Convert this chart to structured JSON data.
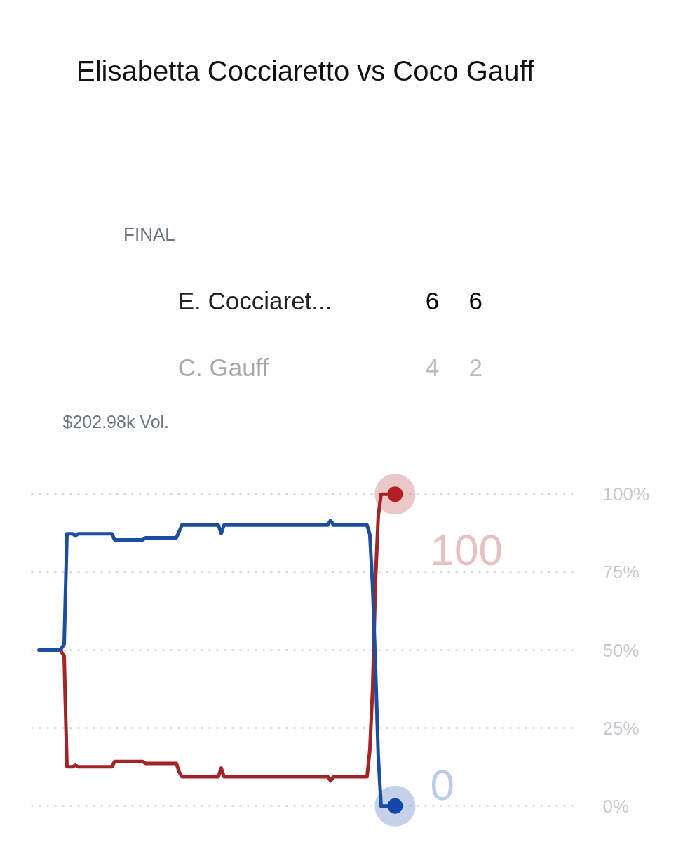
{
  "chart_data": {
    "type": "line",
    "title": "Elisabetta Cocciaretto vs Coco Gauff",
    "annotations": [
      "FINAL",
      "E. Cocciaret...",
      "6",
      "6",
      "C. Gauff",
      "4",
      "2",
      "$202.98k Vol."
    ],
    "categories": [
      null,
      null,
      null,
      null,
      null,
      null,
      null,
      null,
      null,
      null,
      null,
      null,
      null,
      null,
      null,
      null,
      null,
      null,
      null,
      null,
      null,
      null,
      null,
      null,
      null,
      null,
      null,
      null,
      null,
      null,
      null,
      null,
      null,
      null,
      null,
      null,
      null,
      null,
      null,
      null,
      null,
      null,
      null,
      null,
      null,
      null,
      null,
      null,
      null,
      null,
      null,
      null,
      null,
      null,
      null,
      null,
      null,
      null,
      null,
      null,
      null,
      null,
      null,
      null,
      null,
      null,
      null,
      null,
      null,
      null,
      null,
      null,
      null,
      null,
      null,
      null,
      null,
      null,
      null,
      null,
      null,
      null,
      null,
      null,
      null,
      null,
      null,
      null,
      null,
      null,
      null,
      null,
      null,
      null,
      null,
      null,
      null,
      null,
      null,
      null,
      null,
      null,
      null,
      null,
      null,
      null,
      null,
      null,
      null,
      null,
      null,
      null,
      null,
      null,
      null,
      null,
      null,
      null,
      null,
      null,
      null,
      null,
      null,
      null,
      null,
      null,
      null,
      null
    ],
    "series": [
      {
        "color": "#a02428",
        "values": [
          null,
          null,
          null,
          null,
          null,
          null,
          null,
          null,
          49.5,
          48,
          12.6,
          12.6,
          12.6,
          13.1,
          12.6,
          12.6,
          12.6,
          12.6,
          12.6,
          12.6,
          12.6,
          12.6,
          12.6,
          12.6,
          12.6,
          12.6,
          12.6,
          14.3,
          14.3,
          14.3,
          14.3,
          14.3,
          14.3,
          14.3,
          14.3,
          14.3,
          14.3,
          14.3,
          13.7,
          13.7,
          13.7,
          13.7,
          13.7,
          13.7,
          13.7,
          13.7,
          13.7,
          13.7,
          13.7,
          13.7,
          11,
          9.4,
          9.4,
          9.4,
          9.4,
          9.4,
          9.4,
          9.4,
          9.4,
          9.4,
          9.4,
          9.4,
          9.4,
          9.4,
          9.4,
          12.2,
          9.4,
          9.4,
          9.4,
          9.4,
          9.4,
          9.4,
          9.4,
          9.4,
          9.4,
          9.4,
          9.4,
          9.4,
          9.4,
          9.4,
          9.4,
          9.4,
          9.4,
          9.4,
          9.4,
          9.4,
          9.4,
          9.4,
          9.4,
          9.4,
          9.4,
          9.4,
          9.4,
          9.4,
          9.4,
          9.4,
          9.4,
          9.4,
          9.4,
          9.4,
          9.4,
          9.4,
          9.4,
          9.4,
          8.1,
          9.4,
          9.4,
          9.4,
          9.4,
          9.4,
          9.4,
          9.4,
          9.4,
          9.4,
          9.4,
          9.4,
          9.4,
          9.4,
          18,
          38,
          72,
          93,
          100,
          100,
          100,
          100,
          100,
          100
        ]
      },
      {
        "color": "#1d4e9e",
        "values": [
          50,
          50,
          50,
          50,
          50,
          50,
          50,
          50,
          50.5,
          52,
          87.3,
          87.3,
          87.3,
          86.6,
          87.3,
          87.3,
          87.3,
          87.3,
          87.3,
          87.3,
          87.3,
          87.3,
          87.3,
          87.3,
          87.3,
          87.3,
          87.3,
          85.3,
          85.3,
          85.3,
          85.3,
          85.3,
          85.3,
          85.3,
          85.3,
          85.3,
          85.3,
          85.3,
          86,
          86,
          86,
          86,
          86,
          86,
          86,
          86,
          86,
          86,
          86,
          86,
          88,
          90.1,
          90.1,
          90.1,
          90.1,
          90.1,
          90.1,
          90.1,
          90.1,
          90.1,
          90.1,
          90.1,
          90.1,
          90.1,
          90.1,
          87.4,
          90.1,
          90.1,
          90.1,
          90.1,
          90.1,
          90.1,
          90.1,
          90.1,
          90.1,
          90.1,
          90.1,
          90.1,
          90.1,
          90.1,
          90.1,
          90.1,
          90.1,
          90.1,
          90.1,
          90.1,
          90.1,
          90.1,
          90.1,
          90.1,
          90.1,
          90.1,
          90.1,
          90.1,
          90.1,
          90.1,
          90.1,
          90.1,
          90.1,
          90.1,
          90.1,
          90.1,
          90.1,
          90.1,
          91.6,
          90.1,
          90.1,
          90.1,
          90.1,
          90.1,
          90.1,
          90.1,
          90.1,
          90.1,
          90.1,
          90.1,
          90.1,
          90.1,
          87,
          70,
          45,
          16,
          0,
          0,
          0,
          0,
          0,
          0
        ]
      },
      {
        "type": "scatter",
        "marker": "circle",
        "color": "#1248a8",
        "values": [
          null,
          null,
          null,
          null,
          null,
          null,
          null,
          null,
          null,
          null,
          null,
          null,
          null,
          null,
          null,
          null,
          null,
          null,
          null,
          null,
          null,
          null,
          null,
          null,
          null,
          null,
          null,
          null,
          null,
          null,
          null,
          null,
          null,
          null,
          null,
          null,
          null,
          null,
          null,
          null,
          null,
          null,
          null,
          null,
          null,
          null,
          null,
          null,
          null,
          null,
          null,
          null,
          null,
          null,
          null,
          null,
          null,
          null,
          null,
          null,
          null,
          null,
          null,
          null,
          null,
          null,
          null,
          null,
          null,
          null,
          null,
          null,
          null,
          null,
          null,
          null,
          null,
          null,
          null,
          null,
          null,
          null,
          null,
          null,
          null,
          null,
          null,
          null,
          null,
          null,
          null,
          null,
          null,
          null,
          null,
          null,
          null,
          null,
          null,
          null,
          null,
          null,
          null,
          null,
          null,
          null,
          null,
          null,
          null,
          null,
          null,
          null,
          null,
          null,
          null,
          null,
          null,
          null,
          null,
          null,
          null,
          null,
          null,
          null,
          null,
          null,
          null,
          0
        ],
        "value_labels": [
          null,
          null,
          null,
          null,
          null,
          null,
          null,
          null,
          null,
          null,
          null,
          null,
          null,
          null,
          null,
          null,
          null,
          null,
          null,
          null,
          null,
          null,
          null,
          null,
          null,
          null,
          null,
          null,
          null,
          null,
          null,
          null,
          null,
          null,
          null,
          null,
          null,
          null,
          null,
          null,
          null,
          null,
          null,
          null,
          null,
          null,
          null,
          null,
          null,
          null,
          null,
          null,
          null,
          null,
          null,
          null,
          null,
          null,
          null,
          null,
          null,
          null,
          null,
          null,
          null,
          null,
          null,
          null,
          null,
          null,
          null,
          null,
          null,
          null,
          null,
          null,
          null,
          null,
          null,
          null,
          null,
          null,
          null,
          null,
          null,
          null,
          null,
          null,
          null,
          null,
          null,
          null,
          null,
          null,
          null,
          null,
          null,
          null,
          null,
          null,
          null,
          null,
          null,
          null,
          null,
          null,
          null,
          null,
          null,
          null,
          null,
          null,
          null,
          null,
          null,
          null,
          null,
          null,
          null,
          null,
          null,
          null,
          null,
          null,
          null,
          null,
          null,
          "0"
        ]
      },
      {
        "type": "scatter",
        "marker": "circle",
        "color": "#b21f24",
        "values": [
          null,
          null,
          null,
          null,
          null,
          null,
          null,
          null,
          null,
          null,
          null,
          null,
          null,
          null,
          null,
          null,
          null,
          null,
          null,
          null,
          null,
          null,
          null,
          null,
          null,
          null,
          null,
          null,
          null,
          null,
          null,
          null,
          null,
          null,
          null,
          null,
          null,
          null,
          null,
          null,
          null,
          null,
          null,
          null,
          null,
          null,
          null,
          null,
          null,
          null,
          null,
          null,
          null,
          null,
          null,
          null,
          null,
          null,
          null,
          null,
          null,
          null,
          null,
          null,
          null,
          null,
          null,
          null,
          null,
          null,
          null,
          null,
          null,
          null,
          null,
          null,
          null,
          null,
          null,
          null,
          null,
          null,
          null,
          null,
          null,
          null,
          null,
          null,
          null,
          null,
          null,
          null,
          null,
          null,
          null,
          null,
          null,
          null,
          null,
          null,
          null,
          null,
          null,
          null,
          null,
          null,
          null,
          null,
          null,
          null,
          null,
          null,
          null,
          null,
          null,
          null,
          null,
          null,
          null,
          null,
          null,
          null,
          null,
          null,
          null,
          null,
          null,
          100
        ],
        "value_labels": [
          null,
          null,
          null,
          null,
          null,
          null,
          null,
          null,
          null,
          null,
          null,
          null,
          null,
          null,
          null,
          null,
          null,
          null,
          null,
          null,
          null,
          null,
          null,
          null,
          null,
          null,
          null,
          null,
          null,
          null,
          null,
          null,
          null,
          null,
          null,
          null,
          null,
          null,
          null,
          null,
          null,
          null,
          null,
          null,
          null,
          null,
          null,
          null,
          null,
          null,
          null,
          null,
          null,
          null,
          null,
          null,
          null,
          null,
          null,
          null,
          null,
          null,
          null,
          null,
          null,
          null,
          null,
          null,
          null,
          null,
          null,
          null,
          null,
          null,
          null,
          null,
          null,
          null,
          null,
          null,
          null,
          null,
          null,
          null,
          null,
          null,
          null,
          null,
          null,
          null,
          null,
          null,
          null,
          null,
          null,
          null,
          null,
          null,
          null,
          null,
          null,
          null,
          null,
          null,
          null,
          null,
          null,
          null,
          null,
          null,
          null,
          null,
          null,
          null,
          null,
          null,
          null,
          null,
          null,
          null,
          null,
          null,
          null,
          null,
          null,
          null,
          null,
          "100"
        ]
      }
    ],
    "ylim": [
      0,
      100
    ],
    "yticks": [
      {
        "value": 0,
        "label": "0%"
      },
      {
        "value": 25,
        "label": "25%"
      },
      {
        "value": 50,
        "label": "50%"
      },
      {
        "value": 75,
        "label": "75%"
      },
      {
        "value": 100,
        "label": "100%"
      }
    ],
    "grid": "y",
    "line_style": "solid",
    "tick_labels": "y"
  }
}
